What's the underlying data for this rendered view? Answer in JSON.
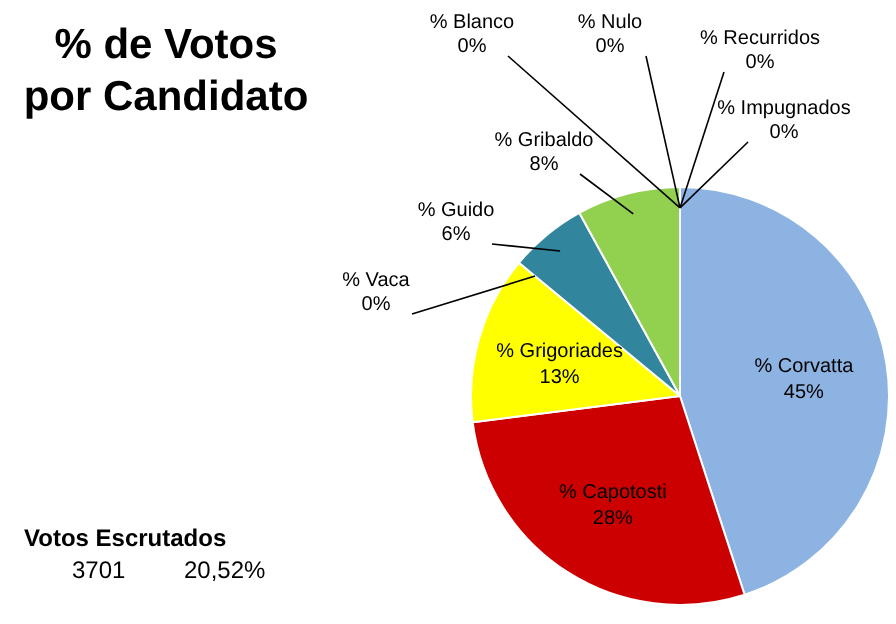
{
  "chart_data": {
    "type": "pie",
    "title": "% de Votos\npor Candidato",
    "categories": [
      "% Corvatta",
      "% Capotosti",
      "% Grigoriades",
      "% Vaca",
      "% Guido",
      "% Gribaldo",
      "% Blanco",
      "% Nulo",
      "% Recurridos",
      "% Impugnados"
    ],
    "values": [
      45,
      28,
      13,
      0,
      6,
      8,
      0,
      0,
      0,
      0
    ],
    "value_labels": [
      "45%",
      "28%",
      "13%",
      "0%",
      "6%",
      "8%",
      "0%",
      "0%",
      "0%",
      "0%"
    ],
    "colors": [
      "#8db3e2",
      "#cc0000",
      "#ffff00",
      "#7f7f7f",
      "#31859c",
      "#92d050",
      "#bfbfbf",
      "#595959",
      "#f79646",
      "#8064a2"
    ],
    "annotations": [
      "Votos Escrutados",
      "3701",
      "20,52%"
    ],
    "legend": false
  }
}
